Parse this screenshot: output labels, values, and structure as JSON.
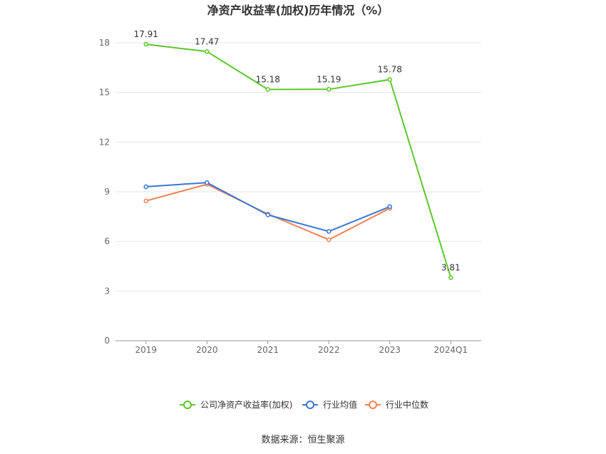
{
  "chart_data": {
    "type": "line",
    "title": "净资产收益率(加权)历年情况（%）",
    "categories": [
      "2019",
      "2020",
      "2021",
      "2022",
      "2023",
      "2024Q1"
    ],
    "yticks": [
      "0",
      "3",
      "6",
      "9",
      "12",
      "15",
      "18"
    ],
    "ylim": [
      0,
      18
    ],
    "grid": true,
    "legend_position": "bottom",
    "series": [
      {
        "name": "公司净资产收益率(加权)",
        "color": "#5cc72b",
        "values": [
          17.91,
          17.47,
          15.18,
          15.19,
          15.78,
          3.81
        ],
        "labels": [
          "17.91",
          "17.47",
          "15.18",
          "15.19",
          "15.78",
          "3.81"
        ]
      },
      {
        "name": "行业均值",
        "color": "#3b75d6",
        "values": [
          9.3,
          9.55,
          7.6,
          6.6,
          8.1,
          null
        ]
      },
      {
        "name": "行业中位数",
        "color": "#f08457",
        "values": [
          8.45,
          9.45,
          7.65,
          6.1,
          8.0,
          null
        ]
      }
    ]
  },
  "source": "数据来源：恒生聚源"
}
